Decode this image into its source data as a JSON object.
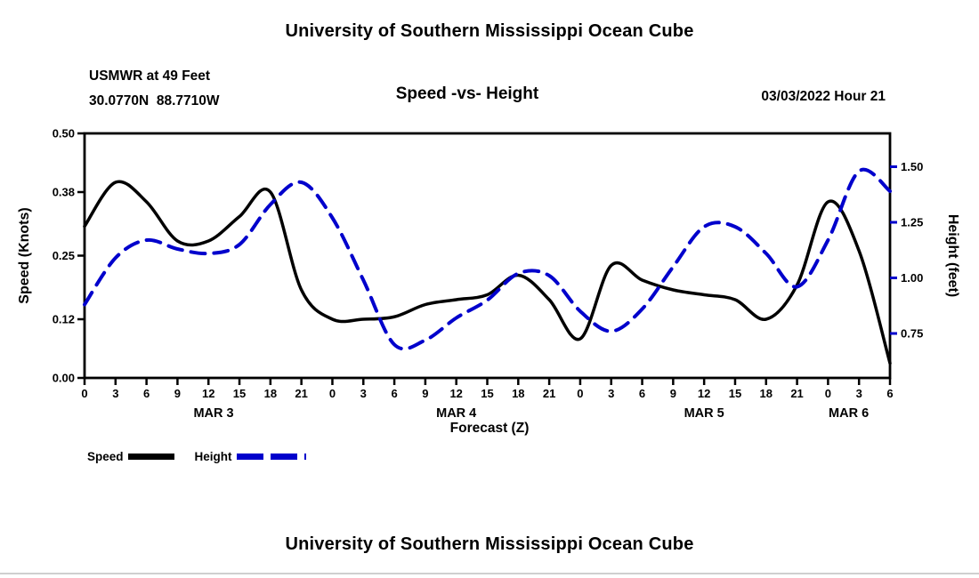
{
  "titles": {
    "top": "University of Southern Mississippi Ocean Cube",
    "bottom": "University of Southern Mississippi Ocean Cube"
  },
  "header": {
    "station": "USMWR at 49 Feet",
    "coords": "30.0770N  88.7710W",
    "chart_title": "Speed -vs- Height",
    "datetime": "03/03/2022 Hour 21"
  },
  "legend": {
    "speed": "Speed",
    "height": "Height"
  },
  "colors": {
    "speed": "#000000",
    "height": "#0000cc",
    "frame": "#000000"
  },
  "chart_data": {
    "type": "line",
    "title": "Speed -vs- Height",
    "xlabel": "Forecast (Z)",
    "ylabel_left": "Speed (Knots)",
    "ylabel_right": "Height (feet)",
    "x_hours": [
      0,
      3,
      6,
      9,
      12,
      15,
      18,
      21,
      24,
      27,
      30,
      33,
      36,
      39,
      42,
      45,
      48,
      51,
      54,
      57,
      60,
      63,
      66,
      69,
      72,
      75,
      78
    ],
    "series": [
      {
        "name": "Speed",
        "axis": "left",
        "color": "#000000",
        "style": "solid",
        "values": [
          0.31,
          0.4,
          0.36,
          0.28,
          0.28,
          0.33,
          0.38,
          0.18,
          0.12,
          0.12,
          0.125,
          0.15,
          0.16,
          0.17,
          0.21,
          0.16,
          0.08,
          0.23,
          0.2,
          0.18,
          0.17,
          0.16,
          0.12,
          0.19,
          0.36,
          0.26,
          0.03
        ]
      },
      {
        "name": "Height",
        "axis": "right",
        "color": "#0000cc",
        "style": "dashed",
        "values": [
          0.88,
          1.09,
          1.17,
          1.13,
          1.11,
          1.15,
          1.33,
          1.43,
          1.27,
          0.99,
          0.7,
          0.72,
          0.82,
          0.9,
          1.02,
          1.01,
          0.85,
          0.76,
          0.86,
          1.05,
          1.23,
          1.23,
          1.11,
          0.96,
          1.17,
          1.48,
          1.39
        ]
      }
    ],
    "ylim_left": [
      0,
      0.5
    ],
    "ylim_right": [
      0.55,
      1.65
    ],
    "yticks_left": [
      "0.00",
      "0.12",
      "0.25",
      "0.38",
      "0.50"
    ],
    "yticks_right": [
      "0.75",
      "1.00",
      "1.25",
      "1.50"
    ],
    "xtick_step_hours": 3,
    "xtick_label_mod": 24,
    "day_labels": [
      {
        "label": "MAR 3",
        "hour": 12.5
      },
      {
        "label": "MAR 4",
        "hour": 36
      },
      {
        "label": "MAR 5",
        "hour": 60
      },
      {
        "label": "MAR 6",
        "hour": 74
      }
    ],
    "grid": false,
    "legend_position": "bottom-left"
  }
}
